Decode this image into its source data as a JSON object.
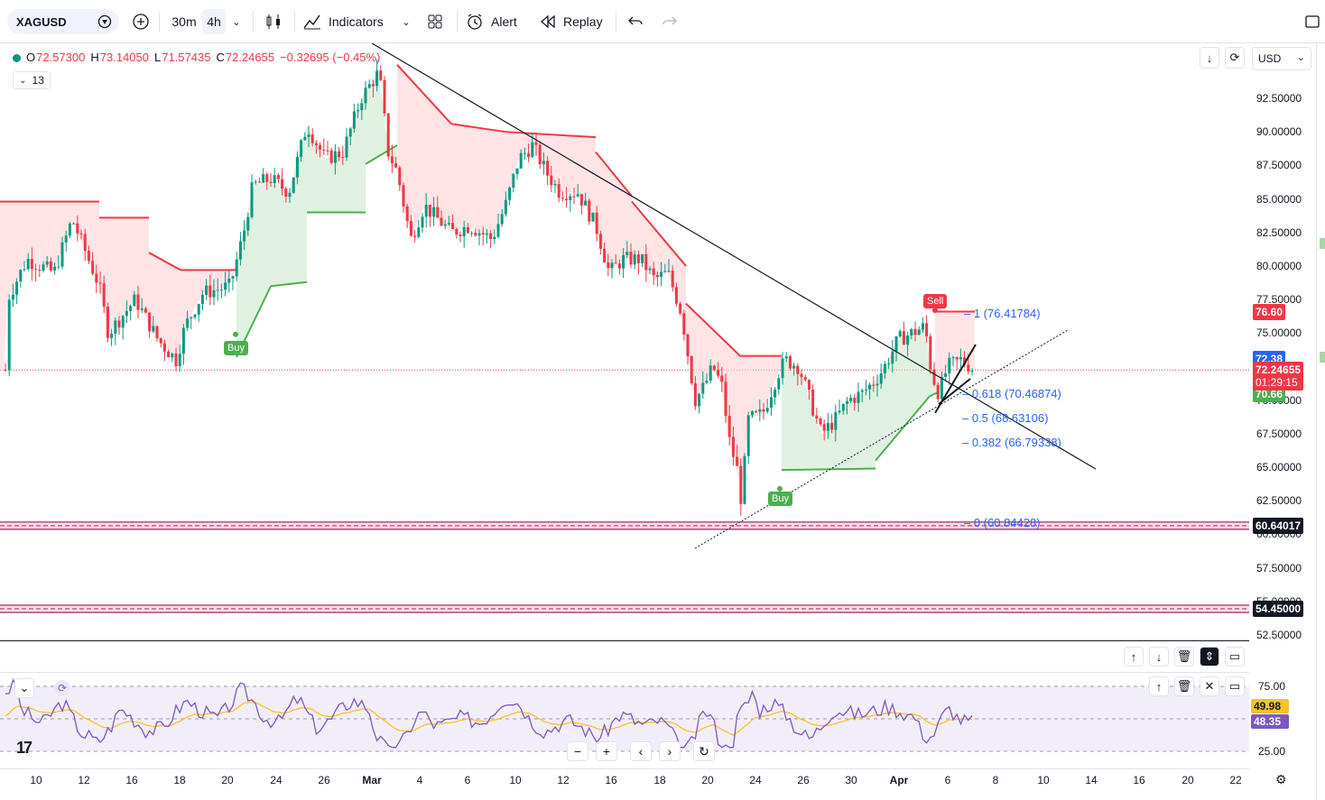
{
  "toolbar": {
    "symbol": "XAGUSD",
    "timeframes": [
      "30m",
      "4h"
    ],
    "active_timeframe": "4h",
    "indicators_label": "Indicators",
    "alert_label": "Alert",
    "replay_label": "Replay"
  },
  "legend": {
    "open_label": "O",
    "open": "72.57300",
    "high_label": "H",
    "high": "73.14050",
    "low_label": "L",
    "low": "71.57435",
    "close_label": "C",
    "close": "72.24655",
    "change": "−0.32695 (−0.45%)",
    "indicator_count": "13"
  },
  "currency": "USD",
  "price_axis": {
    "ticks": [
      "92.50000",
      "90.00000",
      "87.50000",
      "85.00000",
      "82.50000",
      "80.00000",
      "77.50000",
      "75.00000",
      "70.00000",
      "67.50000",
      "65.00000",
      "62.50000",
      "60.00000",
      "57.50000",
      "55.00000",
      "52.50000"
    ],
    "badges": {
      "upper_band": "76.60",
      "ask": "72.38",
      "last_price": "72.24655",
      "countdown": "01:29:15",
      "lower_band": "70.66",
      "support_1": "60.64017",
      "support_2": "54.45000"
    }
  },
  "fib_levels": [
    {
      "text": "1 (76.41784)"
    },
    {
      "text": "0.618 (70.46874)"
    },
    {
      "text": "0.5 (68.63106)"
    },
    {
      "text": "0.382 (66.79338)"
    },
    {
      "text": "0 (60.84428)"
    }
  ],
  "signals": {
    "buy_1": "Buy",
    "buy_2": "Buy",
    "sell": "Sell"
  },
  "rsi": {
    "ticks": [
      "75.00",
      "25.00"
    ],
    "ma_value": "49.98",
    "rsi_value": "48.35"
  },
  "time_axis": [
    "10",
    "12",
    "16",
    "18",
    "20",
    "24",
    "26",
    "Mar",
    "4",
    "6",
    "10",
    "12",
    "16",
    "18",
    "20",
    "24",
    "26",
    "30",
    "Apr",
    "6",
    "8",
    "10",
    "14",
    "16",
    "20",
    "22"
  ],
  "colors": {
    "up": "#089981",
    "down": "#f23645",
    "supertrend_up": "#4caf50",
    "supertrend_down": "#f23645",
    "fib": "#2962ff",
    "rsi_line": "#7e57c2",
    "rsi_ma": "#fbc02d"
  },
  "chart_data": {
    "type": "candlestick",
    "symbol": "XAGUSD",
    "timeframe": "4h",
    "ylim": [
      52.5,
      95.0
    ],
    "last": 72.24655,
    "fib_retracement": [
      {
        "level": 1,
        "price": 76.41784
      },
      {
        "level": 0.618,
        "price": 70.46874
      },
      {
        "level": 0.5,
        "price": 68.63106
      },
      {
        "level": 0.382,
        "price": 66.79338
      },
      {
        "level": 0,
        "price": 60.84428
      }
    ],
    "horizontal_levels": [
      60.64017,
      54.45
    ],
    "supertrend_stops": [
      76.6,
      70.66
    ],
    "rsi": {
      "value": 48.35,
      "ma": 49.98,
      "bands": [
        75,
        25
      ]
    }
  }
}
